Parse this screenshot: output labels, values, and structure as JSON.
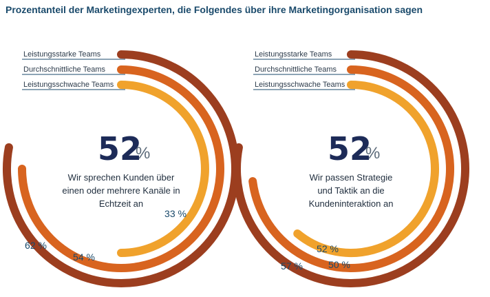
{
  "title": "Prozentanteil der Marketingexperten, die Folgendes über ihre Marketingorganisation sagen",
  "colors": {
    "high": "#9c3e1f",
    "avg": "#d8641f",
    "low": "#f0a22c",
    "line": "#1a4a6b"
  },
  "chart_data": [
    {
      "type": "radial-bar",
      "headline_value": "52",
      "headline_unit": "%",
      "description": [
        "Wir sprechen Kunden über",
        "einen oder mehrere Kanäle in",
        "Echtzeit an"
      ],
      "series": [
        {
          "name": "Leistungsstarke Teams",
          "value": 62,
          "label": "62 %"
        },
        {
          "name": "Durchschnittliche Teams",
          "value": 54,
          "label": "54 %"
        },
        {
          "name": "Leistungsschwache Teams",
          "value": 33,
          "label": "33 %"
        }
      ]
    },
    {
      "type": "radial-bar",
      "headline_value": "52",
      "headline_unit": "%",
      "description": [
        "Wir passen Strategie",
        "und Taktik an die",
        "Kundeninteraktion an"
      ],
      "series": [
        {
          "name": "Leistungsstarke Teams",
          "value": 57,
          "label": "57 %"
        },
        {
          "name": "Durchschnittliche Teams",
          "value": 50,
          "label": "50 %"
        },
        {
          "name": "Leistungsschwache Teams",
          "value": 52,
          "label": "52 %"
        }
      ]
    }
  ]
}
